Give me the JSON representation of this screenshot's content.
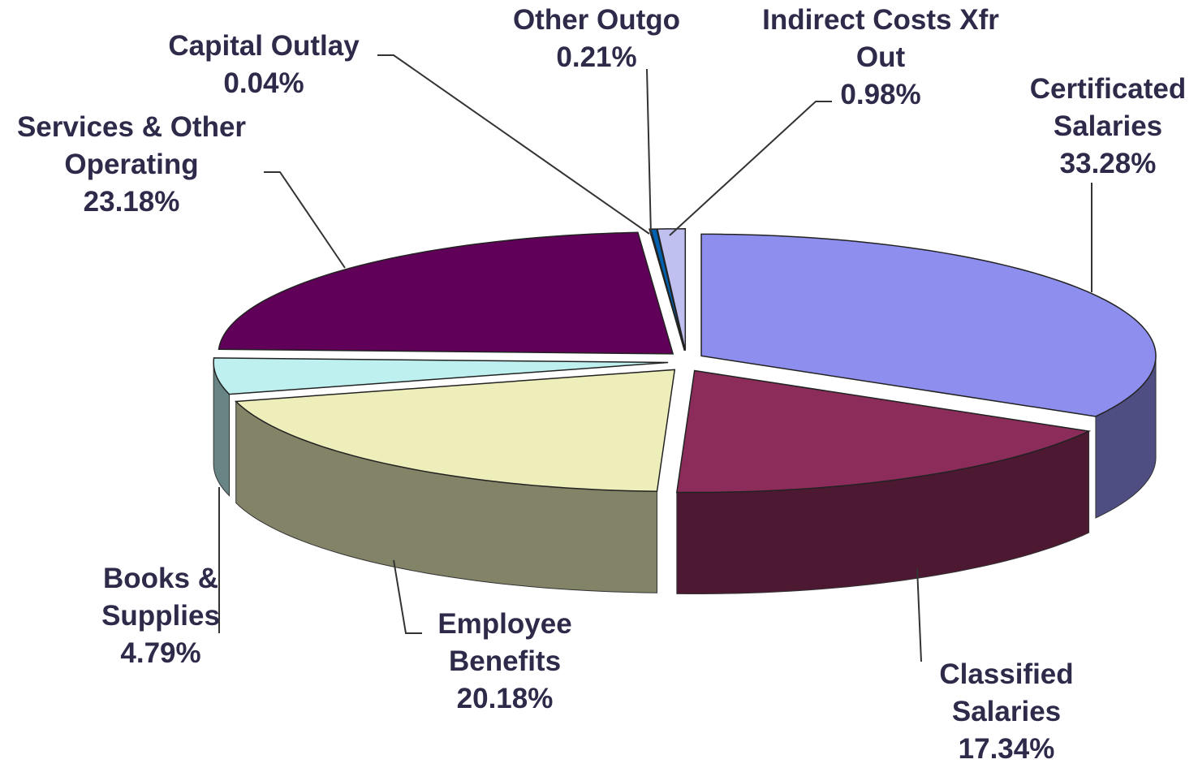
{
  "chart_data": {
    "type": "pie",
    "categories": [
      "Certificated Salaries",
      "Classified Salaries",
      "Employee Benefits",
      "Books & Supplies",
      "Services & Other Operating",
      "Capital Outlay",
      "Other Outgo",
      "Indirect Costs Xfr Out"
    ],
    "values": [
      33.28,
      17.34,
      20.18,
      4.79,
      23.18,
      0.04,
      0.21,
      0.98
    ],
    "value_labels": [
      "33.28%",
      "17.34%",
      "20.18%",
      "4.79%",
      "23.18%",
      "0.04%",
      "0.21%",
      "0.98%"
    ],
    "colors": [
      "#8e8eee",
      "#8b2c5a",
      "#eeeebb",
      "#bff0f0",
      "#600058",
      "#7a3030",
      "#0060b0",
      "#c0c0f0"
    ]
  }
}
